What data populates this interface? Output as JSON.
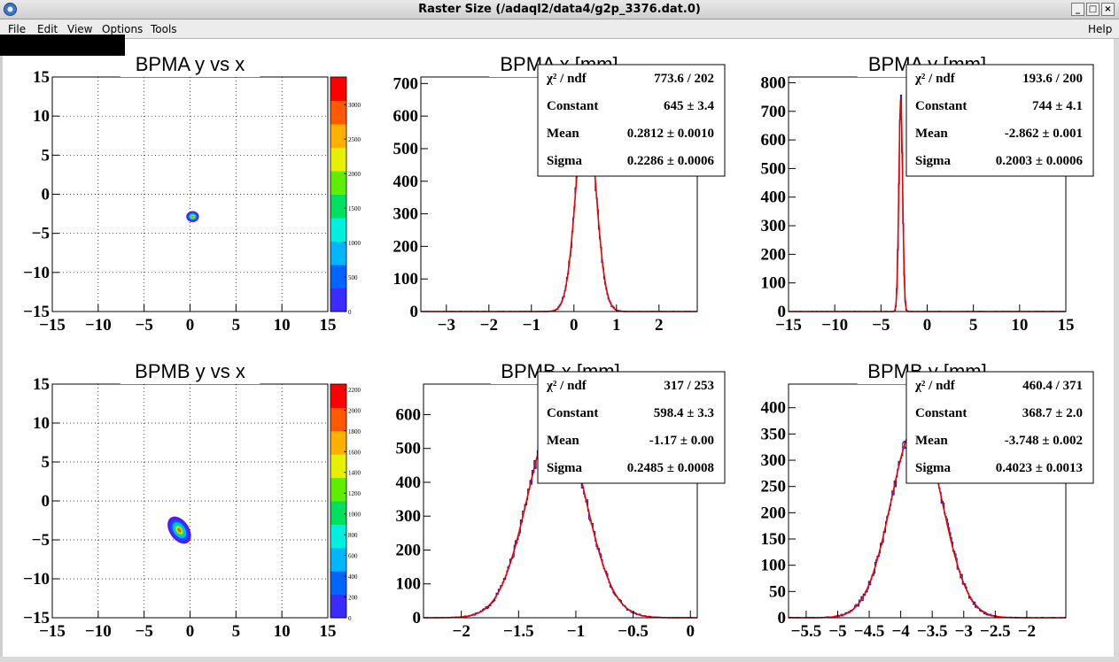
{
  "window": {
    "title": "Raster Size (/adaql2/data4/g2p_3376.dat.0)",
    "buttons": [
      "_",
      "□",
      "×"
    ]
  },
  "menubar": {
    "items": [
      "File",
      "Edit",
      "View",
      "Options",
      "Tools"
    ],
    "help": "Help"
  },
  "chart_data": [
    {
      "type": "heatmap",
      "title": "BPMA y vs x",
      "xlim": [
        -15,
        15
      ],
      "ylim": [
        -15,
        15
      ],
      "xticks": [
        -15,
        -10,
        -5,
        0,
        5,
        10,
        15
      ],
      "yticks": [
        -15,
        -10,
        -5,
        0,
        5,
        10,
        15
      ],
      "grid": true,
      "colorbar": {
        "range": [
          0,
          3400
        ],
        "ticks": [
          0,
          500,
          1000,
          1500,
          2000,
          2500,
          3000
        ]
      },
      "spot": {
        "x": 0.28,
        "y": -2.86,
        "sx": 0.23,
        "sy": 0.2,
        "angle": 0
      }
    },
    {
      "type": "line",
      "title": "BPMA x [mm]",
      "xlim": [
        -3.6,
        2.9
      ],
      "ylim": [
        0,
        720
      ],
      "xticks": [
        -3,
        -2,
        -1,
        0,
        1,
        2
      ],
      "yticks": [
        0,
        100,
        200,
        300,
        400,
        500,
        600,
        700
      ],
      "grid": false,
      "fit": {
        "constant": 645,
        "mean": 0.2812,
        "sigma": 0.2286
      },
      "stats": [
        {
          "name": "χ² / ndf",
          "value": "773.6 / 202"
        },
        {
          "name": "Constant",
          "value": "645 ± 3.4"
        },
        {
          "name": "Mean",
          "value": "0.2812 ± 0.0010"
        },
        {
          "name": "Sigma",
          "value": "0.2286 ± 0.0006"
        }
      ]
    },
    {
      "type": "line",
      "title": "BPMA y [mm]",
      "xlim": [
        -15,
        15
      ],
      "ylim": [
        0,
        820
      ],
      "xticks": [
        -15,
        -10,
        -5,
        0,
        5,
        10,
        15
      ],
      "yticks": [
        0,
        100,
        200,
        300,
        400,
        500,
        600,
        700,
        800
      ],
      "grid": false,
      "fit": {
        "constant": 744,
        "mean": -2.862,
        "sigma": 0.2003
      },
      "stats": [
        {
          "name": "χ² / ndf",
          "value": "193.6 / 200"
        },
        {
          "name": "Constant",
          "value": "744 ± 4.1"
        },
        {
          "name": "Mean",
          "value": "-2.862 ± 0.001"
        },
        {
          "name": "Sigma",
          "value": "0.2003 ± 0.0006"
        }
      ]
    },
    {
      "type": "heatmap",
      "title": "BPMB y vs x",
      "xlim": [
        -15,
        15
      ],
      "ylim": [
        -15,
        15
      ],
      "xticks": [
        -15,
        -10,
        -5,
        0,
        5,
        10,
        15
      ],
      "yticks": [
        -15,
        -10,
        -5,
        0,
        5,
        10,
        15
      ],
      "grid": true,
      "colorbar": {
        "range": [
          0,
          2250
        ],
        "ticks": [
          0,
          200,
          400,
          600,
          800,
          1000,
          1200,
          1400,
          1600,
          1800,
          2000,
          2200
        ]
      },
      "spot": {
        "x": -1.17,
        "y": -3.75,
        "sx": 0.35,
        "sy": 0.55,
        "angle": -35
      }
    },
    {
      "type": "line",
      "title": "BPMB x [mm]",
      "xlim": [
        -2.33,
        0.06
      ],
      "ylim": [
        0,
        690
      ],
      "xticks": [
        -2,
        -1.5,
        -1,
        -0.5,
        0
      ],
      "yticks": [
        0,
        100,
        200,
        300,
        400,
        500,
        600
      ],
      "grid": false,
      "fit": {
        "constant": 598.4,
        "mean": -1.17,
        "sigma": 0.2485
      },
      "stats": [
        {
          "name": "χ² / ndf",
          "value": "317 / 253"
        },
        {
          "name": "Constant",
          "value": "598.4 ± 3.3"
        },
        {
          "name": "Mean",
          "value": "-1.17 ± 0.00"
        },
        {
          "name": "Sigma",
          "value": "0.2485 ± 0.0008"
        }
      ]
    },
    {
      "type": "line",
      "title": "BPMB y [mm]",
      "xlim": [
        -5.78,
        -1.38
      ],
      "ylim": [
        0,
        445
      ],
      "xticks": [
        -5.5,
        -5,
        -4.5,
        -4,
        -3.5,
        -3,
        -2.5,
        -2
      ],
      "yticks": [
        0,
        50,
        100,
        150,
        200,
        250,
        300,
        350,
        400
      ],
      "grid": false,
      "fit": {
        "constant": 368.7,
        "mean": -3.748,
        "sigma": 0.4023
      },
      "stats": [
        {
          "name": "χ² / ndf",
          "value": "460.4 / 371"
        },
        {
          "name": "Constant",
          "value": "368.7 ± 2.0"
        },
        {
          "name": "Mean",
          "value": "-3.748 ± 0.002"
        },
        {
          "name": "Sigma",
          "value": "0.4023 ± 0.0013"
        }
      ]
    }
  ]
}
